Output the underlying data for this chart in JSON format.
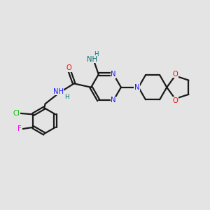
{
  "bg_color": "#e4e4e4",
  "bond_color": "#1a1a1a",
  "bond_width": 1.6,
  "atom_colors": {
    "N": "#1a1aff",
    "O": "#ff0000",
    "Cl": "#00bb00",
    "F": "#ee00ee",
    "C": "#1a1a1a",
    "H": "#007070"
  },
  "font_size": 7.2,
  "fig_size": [
    3.0,
    3.0
  ],
  "dpi": 100
}
